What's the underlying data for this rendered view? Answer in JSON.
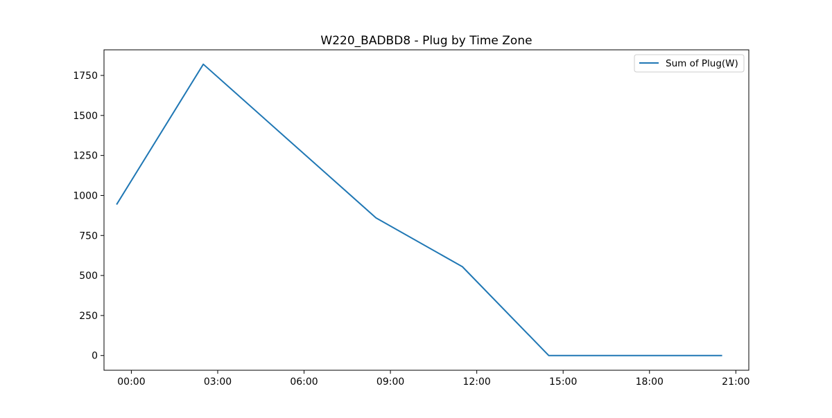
{
  "chart_data": {
    "type": "line",
    "title": "W220_BADBD8 - Plug by Time Zone",
    "xlabel": "",
    "ylabel": "",
    "x_axis_kind": "time-of-day",
    "x_ticks": [
      "00:00",
      "03:00",
      "06:00",
      "09:00",
      "12:00",
      "15:00",
      "18:00",
      "21:00"
    ],
    "y_ticks": [
      0,
      250,
      500,
      750,
      1000,
      1250,
      1500,
      1750
    ],
    "xlim": [
      "23:03",
      "21:27"
    ],
    "ylim": [
      -92,
      1910
    ],
    "grid": false,
    "legend": "top-right",
    "series": [
      {
        "name": "Sum of Plug(W)",
        "color": "#1f77b4",
        "points": [
          {
            "x": "23:30",
            "y": 947
          },
          {
            "x": "02:30",
            "y": 1820
          },
          {
            "x": "05:30",
            "y": 1340
          },
          {
            "x": "08:30",
            "y": 860
          },
          {
            "x": "11:30",
            "y": 555
          },
          {
            "x": "14:30",
            "y": 0
          },
          {
            "x": "17:30",
            "y": 0
          },
          {
            "x": "20:30",
            "y": 0
          }
        ]
      }
    ]
  }
}
